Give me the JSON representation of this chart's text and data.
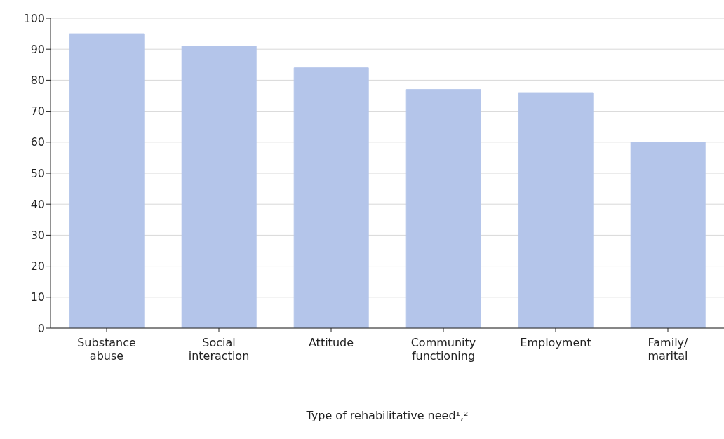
{
  "chart_data": {
    "type": "bar",
    "xlabel": "Type of rehabilitative need¹,²",
    "categories": [
      "Substance abuse",
      "Social interaction",
      "Attitude",
      "Community functioning",
      "Employment",
      "Family/marital"
    ],
    "values": [
      95,
      91,
      84,
      77,
      76,
      60
    ],
    "color": "#b4c5ea",
    "ylim": [
      0,
      100
    ],
    "yticks": [
      0,
      10,
      20,
      30,
      40,
      50,
      60,
      70,
      80,
      90,
      100
    ],
    "grid": "y"
  }
}
